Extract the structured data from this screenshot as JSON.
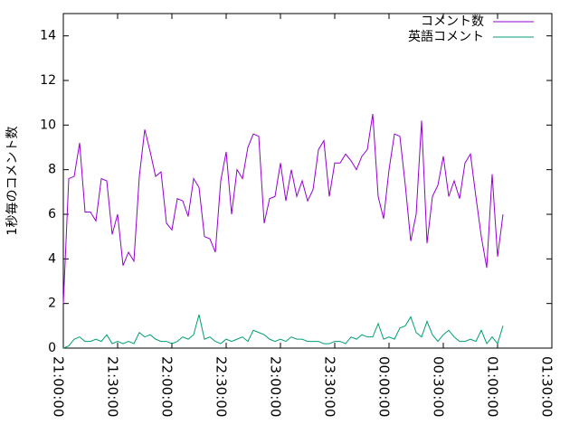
{
  "chart_data": {
    "type": "line",
    "ylabel": "1秒毎のコメント数",
    "x": [
      "21:00:00",
      "21:03:00",
      "21:06:00",
      "21:09:00",
      "21:12:00",
      "21:15:00",
      "21:18:00",
      "21:21:00",
      "21:24:00",
      "21:27:00",
      "21:30:00",
      "21:33:00",
      "21:36:00",
      "21:39:00",
      "21:42:00",
      "21:45:00",
      "21:48:00",
      "21:51:00",
      "21:54:00",
      "21:57:00",
      "22:00:00",
      "22:03:00",
      "22:06:00",
      "22:09:00",
      "22:12:00",
      "22:15:00",
      "22:18:00",
      "22:21:00",
      "22:24:00",
      "22:27:00",
      "22:30:00",
      "22:33:00",
      "22:36:00",
      "22:39:00",
      "22:42:00",
      "22:45:00",
      "22:48:00",
      "22:51:00",
      "22:54:00",
      "22:57:00",
      "23:00:00",
      "23:03:00",
      "23:06:00",
      "23:09:00",
      "23:12:00",
      "23:15:00",
      "23:18:00",
      "23:21:00",
      "23:24:00",
      "23:27:00",
      "23:30:00",
      "23:33:00",
      "23:36:00",
      "23:39:00",
      "23:42:00",
      "23:45:00",
      "23:48:00",
      "23:51:00",
      "23:54:00",
      "23:57:00",
      "00:00:00",
      "00:03:00",
      "00:06:00",
      "00:09:00",
      "00:12:00",
      "00:15:00",
      "00:18:00",
      "00:21:00",
      "00:24:00",
      "00:27:00",
      "00:30:00",
      "00:33:00",
      "00:36:00",
      "00:39:00",
      "00:42:00",
      "00:45:00",
      "00:48:00",
      "00:51:00",
      "00:54:00",
      "00:57:00",
      "01:00:00",
      "01:03:00"
    ],
    "series": [
      {
        "name": "コメント数",
        "color": "#9400d3",
        "values": [
          2.0,
          7.6,
          7.7,
          9.2,
          6.1,
          6.1,
          5.7,
          7.6,
          7.5,
          5.1,
          6.0,
          3.7,
          4.3,
          3.9,
          7.7,
          9.8,
          8.8,
          7.7,
          7.9,
          5.6,
          5.3,
          6.7,
          6.6,
          5.9,
          7.6,
          7.2,
          5.0,
          4.9,
          4.3,
          7.5,
          8.8,
          6.0,
          8.0,
          7.6,
          9.0,
          9.6,
          9.5,
          5.6,
          6.7,
          6.8,
          8.3,
          6.6,
          8.0,
          6.8,
          7.5,
          6.6,
          7.1,
          8.9,
          9.3,
          6.8,
          8.3,
          8.3,
          8.7,
          8.4,
          8.0,
          8.6,
          8.9,
          10.5,
          6.8,
          5.8,
          8.0,
          9.6,
          9.5,
          7.3,
          4.8,
          6.0,
          10.2,
          4.7,
          6.8,
          7.3,
          8.6,
          6.8,
          7.5,
          6.7,
          8.3,
          8.7,
          6.8,
          5.0,
          3.6,
          7.8,
          4.1,
          6.0
        ]
      },
      {
        "name": "英語コメント",
        "color": "#009e73",
        "values": [
          0.0,
          0.1,
          0.4,
          0.5,
          0.3,
          0.3,
          0.4,
          0.3,
          0.6,
          0.2,
          0.3,
          0.2,
          0.3,
          0.2,
          0.7,
          0.5,
          0.6,
          0.4,
          0.3,
          0.3,
          0.2,
          0.3,
          0.5,
          0.4,
          0.6,
          1.5,
          0.4,
          0.5,
          0.3,
          0.2,
          0.4,
          0.3,
          0.4,
          0.5,
          0.3,
          0.8,
          0.7,
          0.6,
          0.4,
          0.3,
          0.4,
          0.3,
          0.5,
          0.4,
          0.4,
          0.3,
          0.3,
          0.3,
          0.2,
          0.2,
          0.3,
          0.3,
          0.2,
          0.5,
          0.4,
          0.6,
          0.5,
          0.5,
          1.1,
          0.4,
          0.5,
          0.4,
          0.9,
          1.0,
          1.4,
          0.7,
          0.5,
          1.2,
          0.6,
          0.3,
          0.6,
          0.8,
          0.5,
          0.3,
          0.3,
          0.4,
          0.3,
          0.8,
          0.2,
          0.5,
          0.2,
          1.0
        ]
      }
    ],
    "xlim": [
      "21:00:00",
      "01:30:00"
    ],
    "xticks": [
      "21:00:00",
      "21:30:00",
      "22:00:00",
      "22:30:00",
      "23:00:00",
      "23:30:00",
      "00:00:00",
      "00:30:00",
      "01:00:00",
      "01:30:00"
    ],
    "ylim": [
      0,
      15
    ],
    "yticks": [
      0,
      2,
      4,
      6,
      8,
      10,
      12,
      14
    ],
    "legend": "top-right"
  }
}
